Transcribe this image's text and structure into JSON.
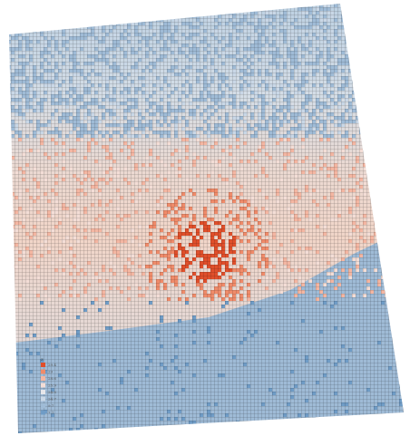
{
  "chart_data": {
    "type": "heatmap",
    "title": "",
    "xlabel": "",
    "ylabel": "",
    "grid": true,
    "legend_placement": "bottom-left",
    "legend_title": "z",
    "scale": {
      "breaks": [
        {
          "label": "29.4",
          "color": "#e04f2b",
          "value": 29.4
        },
        {
          "label": "29",
          "color": "#ef8b6a",
          "value": 29.0
        },
        {
          "label": "28.6",
          "color": "#f4b6a2",
          "value": 28.6
        },
        {
          "label": "25.9",
          "color": "#f3ddd6",
          "value": 25.9
        },
        {
          "label": "24.8",
          "color": "#e6e6ea",
          "value": 24.8
        },
        {
          "label": "24.7",
          "color": "#c9d7e6",
          "value": 24.7
        },
        {
          "label": "9.7",
          "color": "#9fbbd6",
          "value": 9.7
        },
        {
          "label": "7.1",
          "color": "#6f9cc6",
          "value": 7.1
        }
      ]
    },
    "field_description_values": {
      "top_band_level": 24.7,
      "middle_band_level": 25.9,
      "hotspot_level": 29.4,
      "bottom_band_level": 9.7
    }
  }
}
